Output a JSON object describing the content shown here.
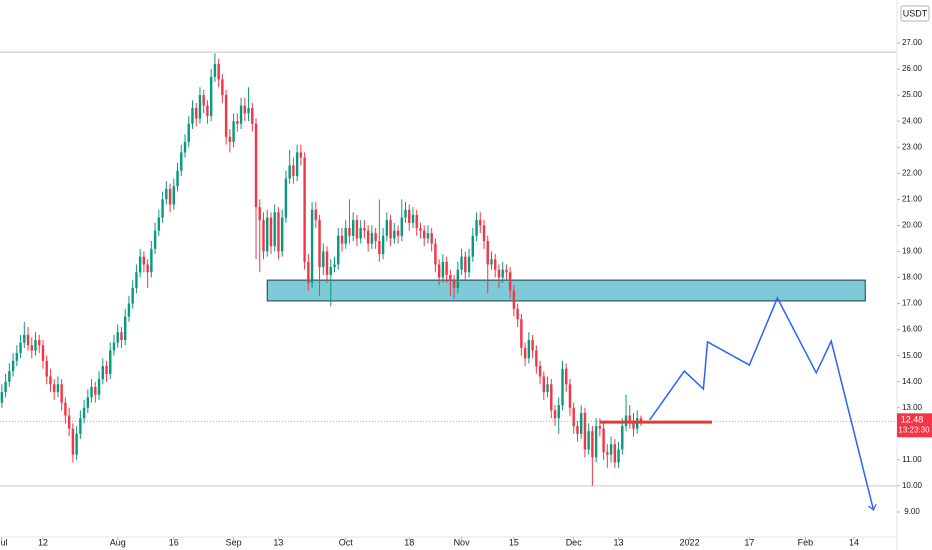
{
  "chart_data": {
    "type": "candlestick",
    "currency": "USDT",
    "up_color": "#089981",
    "down_color": "#f23645",
    "open": [
      13.2,
      13.6,
      14.0,
      14.4,
      14.8,
      15.1,
      15.5,
      15.8,
      15.4,
      15.2,
      15.6,
      15.4,
      14.8,
      14.2,
      13.9,
      13.6,
      13.9,
      13.2,
      12.7,
      12.2,
      11.2,
      12.0,
      12.6,
      13.0,
      13.4,
      13.8,
      13.5,
      14.1,
      14.6,
      14.3,
      15.2,
      15.5,
      15.9,
      15.6,
      16.5,
      17.0,
      17.6,
      18.2,
      18.8,
      18.5,
      18.2,
      19.1,
      19.8,
      20.3,
      21.0,
      21.4,
      20.8,
      21.5,
      22.1,
      22.8,
      23.2,
      23.9,
      24.5,
      24.1,
      25.0,
      24.6,
      24.2,
      25.7,
      26.2,
      25.6,
      25.0,
      23.4,
      23.2,
      24.0,
      23.9,
      24.6,
      24.3,
      24.5,
      23.9,
      20.7,
      20.2,
      19.0,
      20.3,
      19.2,
      20.5,
      19.0,
      20.3,
      21.8,
      22.3,
      21.9,
      22.8,
      22.6,
      18.6,
      17.8,
      20.6,
      20.2,
      18.4,
      19.0,
      18.1,
      18.4,
      18.5,
      19.6,
      19.3,
      19.9,
      19.6,
      20.2,
      19.5,
      19.9,
      19.8,
      19.3,
      19.7,
      19.4,
      18.9,
      19.6,
      20.2,
      19.5,
      19.8,
      19.6,
      20.3,
      20.6,
      20.1,
      20.4,
      19.9,
      19.8,
      19.5,
      19.7,
      19.3,
      18.5,
      18.0,
      18.6,
      18.1,
      17.9,
      17.6,
      18.3,
      18.8,
      18.2,
      18.8,
      19.6,
      20.2,
      20.0,
      19.4,
      18.5,
      18.7,
      18.3,
      18.0,
      18.3,
      18.2,
      17.5,
      16.8,
      16.4,
      15.3,
      14.9,
      15.6,
      15.2,
      14.6,
      14.2,
      13.6,
      13.9,
      12.9,
      12.6,
      13.1,
      14.5,
      13.9,
      13.0,
      12.3,
      12.0,
      12.8,
      11.4,
      12.1,
      11.1,
      12.3,
      12.2,
      11.3,
      11.2,
      11.6,
      10.9,
      11.4,
      12.3,
      12.7,
      12.5,
      12.2,
      12.6
    ],
    "high": [
      13.9,
      14.3,
      14.7,
      15.1,
      15.4,
      15.8,
      16.3,
      16.1,
      15.7,
      15.9,
      15.8,
      15.6,
      15.0,
      14.5,
      14.1,
      14.2,
      14.1,
      13.4,
      13.0,
      12.4,
      12.3,
      12.9,
      13.3,
      13.7,
      14.1,
      14.0,
      14.4,
      14.9,
      14.8,
      15.5,
      15.8,
      16.2,
      16.1,
      16.8,
      17.3,
      17.9,
      18.5,
      19.1,
      19.0,
      18.7,
      19.4,
      20.1,
      20.6,
      21.3,
      21.7,
      21.6,
      21.8,
      22.4,
      23.1,
      23.5,
      24.2,
      24.8,
      24.7,
      25.3,
      25.2,
      24.8,
      26.0,
      26.6,
      26.4,
      25.8,
      25.2,
      23.7,
      24.3,
      24.3,
      24.9,
      24.9,
      25.3,
      24.7,
      24.1,
      21.0,
      20.5,
      20.6,
      20.5,
      20.8,
      20.7,
      20.6,
      22.1,
      22.9,
      22.6,
      23.1,
      23.1,
      22.8,
      18.9,
      20.9,
      20.9,
      20.4,
      19.3,
      19.2,
      18.7,
      18.8,
      19.9,
      19.9,
      20.2,
      21.0,
      20.5,
      20.4,
      20.2,
      20.2,
      20.0,
      20.0,
      19.9,
      21.0,
      19.9,
      20.5,
      20.4,
      20.1,
      20.0,
      21.0,
      20.9,
      20.8,
      20.7,
      20.6,
      20.1,
      20.0,
      20.0,
      19.9,
      19.5,
      18.7,
      18.9,
      18.8,
      18.3,
      18.1,
      18.6,
      19.1,
      19.0,
      19.1,
      19.9,
      20.5,
      20.5,
      20.2,
      19.6,
      19.0,
      18.9,
      18.5,
      18.6,
      18.5,
      18.4,
      17.7,
      17.0,
      16.6,
      15.5,
      15.9,
      15.8,
      15.4,
      14.8,
      14.4,
      14.2,
      14.1,
      13.1,
      13.4,
      14.8,
      14.7,
      14.1,
      13.2,
      12.5,
      13.1,
      13.0,
      12.4,
      12.3,
      12.6,
      12.6,
      12.4,
      11.6,
      11.9,
      11.8,
      11.7,
      12.6,
      13.5,
      13.1,
      12.8,
      12.9,
      12.7
    ],
    "low": [
      13.0,
      13.4,
      13.8,
      14.2,
      14.6,
      14.9,
      15.3,
      15.2,
      14.9,
      15.0,
      15.1,
      14.5,
      13.9,
      13.6,
      13.3,
      13.4,
      12.9,
      12.4,
      11.9,
      10.9,
      11.0,
      11.8,
      12.4,
      12.8,
      13.2,
      13.2,
      13.3,
      13.9,
      14.0,
      14.1,
      15.0,
      15.3,
      15.3,
      15.4,
      16.3,
      16.8,
      17.4,
      18.0,
      18.2,
      17.6,
      18.0,
      18.9,
      19.6,
      20.1,
      20.8,
      20.5,
      20.6,
      21.3,
      21.9,
      22.6,
      23.0,
      23.7,
      23.8,
      23.9,
      24.3,
      23.9,
      24.0,
      25.5,
      25.3,
      24.7,
      23.1,
      22.8,
      23.0,
      23.6,
      23.7,
      24.0,
      24.0,
      23.6,
      18.7,
      18.2,
      18.7,
      18.8,
      18.9,
      19.0,
      18.7,
      18.8,
      20.1,
      21.6,
      21.6,
      21.7,
      22.3,
      18.3,
      17.5,
      17.6,
      19.9,
      17.3,
      18.1,
      17.8,
      16.9,
      18.2,
      18.3,
      19.0,
      19.1,
      19.3,
      19.4,
      19.2,
      19.3,
      19.5,
      19.0,
      19.1,
      19.1,
      18.6,
      18.7,
      19.4,
      19.2,
      19.3,
      19.3,
      19.4,
      20.1,
      19.8,
      19.9,
      19.6,
      19.5,
      19.2,
      19.3,
      19.0,
      18.2,
      17.7,
      17.8,
      17.8,
      17.3,
      17.2,
      17.4,
      18.1,
      17.9,
      18.0,
      18.6,
      19.4,
      19.7,
      19.1,
      17.4,
      18.3,
      18.0,
      17.6,
      17.8,
      17.9,
      17.2,
      16.5,
      16.1,
      15.0,
      14.6,
      14.7,
      14.9,
      14.3,
      13.9,
      13.3,
      13.4,
      12.6,
      12.3,
      12.0,
      12.9,
      13.6,
      12.7,
      12.0,
      11.7,
      11.8,
      11.1,
      11.2,
      10.0,
      10.9,
      11.9,
      11.0,
      10.7,
      10.9,
      10.7,
      10.7,
      11.2,
      12.1,
      12.2,
      11.9,
      12.0,
      12.3
    ],
    "close": [
      13.6,
      14.0,
      14.4,
      14.8,
      15.1,
      15.5,
      15.8,
      15.4,
      15.2,
      15.6,
      15.4,
      14.8,
      14.2,
      13.9,
      13.6,
      13.9,
      13.2,
      12.7,
      12.2,
      11.2,
      12.0,
      12.6,
      13.0,
      13.4,
      13.8,
      13.5,
      14.1,
      14.6,
      14.3,
      15.2,
      15.5,
      15.9,
      15.6,
      16.5,
      17.0,
      17.6,
      18.2,
      18.8,
      18.5,
      18.2,
      19.1,
      19.8,
      20.3,
      21.0,
      21.4,
      20.8,
      21.5,
      22.1,
      22.8,
      23.2,
      23.9,
      24.5,
      24.1,
      25.0,
      24.6,
      24.2,
      25.7,
      26.2,
      25.6,
      25.0,
      23.4,
      23.2,
      24.0,
      23.9,
      24.6,
      24.3,
      24.5,
      23.9,
      20.7,
      20.2,
      19.0,
      20.3,
      19.2,
      20.5,
      19.0,
      20.3,
      21.8,
      22.3,
      21.9,
      22.8,
      22.6,
      18.6,
      17.8,
      20.6,
      20.2,
      18.4,
      19.0,
      18.1,
      18.4,
      18.5,
      19.6,
      19.3,
      19.9,
      19.6,
      20.2,
      19.5,
      19.9,
      19.8,
      19.3,
      19.7,
      19.4,
      18.9,
      19.6,
      20.2,
      19.5,
      19.8,
      19.6,
      20.3,
      20.6,
      20.1,
      20.4,
      19.9,
      19.8,
      19.5,
      19.7,
      19.3,
      18.5,
      18.0,
      18.6,
      18.1,
      17.9,
      17.6,
      18.3,
      18.8,
      18.2,
      18.8,
      19.6,
      20.2,
      20.0,
      19.4,
      18.5,
      18.7,
      18.3,
      18.0,
      18.3,
      18.2,
      17.5,
      16.8,
      16.4,
      15.3,
      14.9,
      15.6,
      15.2,
      14.6,
      14.2,
      13.6,
      13.9,
      12.9,
      12.6,
      13.1,
      14.5,
      13.9,
      13.0,
      12.3,
      12.0,
      12.8,
      11.4,
      12.1,
      11.1,
      12.3,
      12.2,
      11.3,
      11.2,
      11.6,
      10.9,
      11.4,
      12.3,
      12.7,
      12.5,
      12.2,
      12.6,
      12.48
    ],
    "xlim": [
      -0.5,
      239.5
    ],
    "xticks": [
      {
        "value": 0,
        "label": "Jul"
      },
      {
        "value": 11,
        "label": "12"
      },
      {
        "value": 31,
        "label": "Aug"
      },
      {
        "value": 46,
        "label": "16"
      },
      {
        "value": 62,
        "label": "Sep"
      },
      {
        "value": 74,
        "label": "13"
      },
      {
        "value": 92,
        "label": "Oct"
      },
      {
        "value": 109,
        "label": "18"
      },
      {
        "value": 123,
        "label": "Nov"
      },
      {
        "value": 137,
        "label": "15"
      },
      {
        "value": 153,
        "label": "Dec"
      },
      {
        "value": 165,
        "label": "13"
      },
      {
        "value": 184,
        "label": "2022"
      },
      {
        "value": 200,
        "label": "17"
      },
      {
        "value": 215,
        "label": "Feb"
      },
      {
        "value": 228,
        "label": "14"
      }
    ],
    "ylim": [
      8.04,
      28.65
    ],
    "yticks": [
      {
        "value": 9,
        "label": "9.00"
      },
      {
        "value": 10,
        "label": "10.00"
      },
      {
        "value": 11,
        "label": "11.00"
      },
      {
        "value": 12,
        "label": "12.00"
      },
      {
        "value": 13,
        "label": "13.00"
      },
      {
        "value": 14,
        "label": "14.00"
      },
      {
        "value": 15,
        "label": "15.00"
      },
      {
        "value": 16,
        "label": "16.00"
      },
      {
        "value": 17,
        "label": "17.00"
      },
      {
        "value": 18,
        "label": "18.00"
      },
      {
        "value": 19,
        "label": "19.00"
      },
      {
        "value": 20,
        "label": "20.00"
      },
      {
        "value": 21,
        "label": "21.00"
      },
      {
        "value": 22,
        "label": "22.00"
      },
      {
        "value": 23,
        "label": "23.00"
      },
      {
        "value": 24,
        "label": "24.00"
      },
      {
        "value": 25,
        "label": "25.00"
      },
      {
        "value": 26,
        "label": "26.00"
      },
      {
        "value": 27,
        "label": "27.00"
      }
    ],
    "last_price": 12.48,
    "countdown": "13:23:30",
    "last_price_color": "#f23645",
    "levels": [
      26.65,
      10.0
    ],
    "level_color": "#c8c8c8",
    "zone": {
      "x": [
        71,
        231
      ],
      "y": [
        17.1,
        17.9
      ],
      "color": "#7ecad6"
    },
    "support": {
      "x": [
        160,
        190
      ],
      "y": 12.45,
      "color": "#e53935"
    },
    "projection": {
      "x": [
        173.3,
        182.6,
        187.7,
        188.8,
        200,
        207.5,
        217.9,
        221.9,
        233.2
      ],
      "y": [
        12.53,
        14.41,
        13.72,
        15.53,
        14.64,
        17.21,
        14.34,
        15.56,
        9.08
      ],
      "color": "#2962ff"
    }
  }
}
